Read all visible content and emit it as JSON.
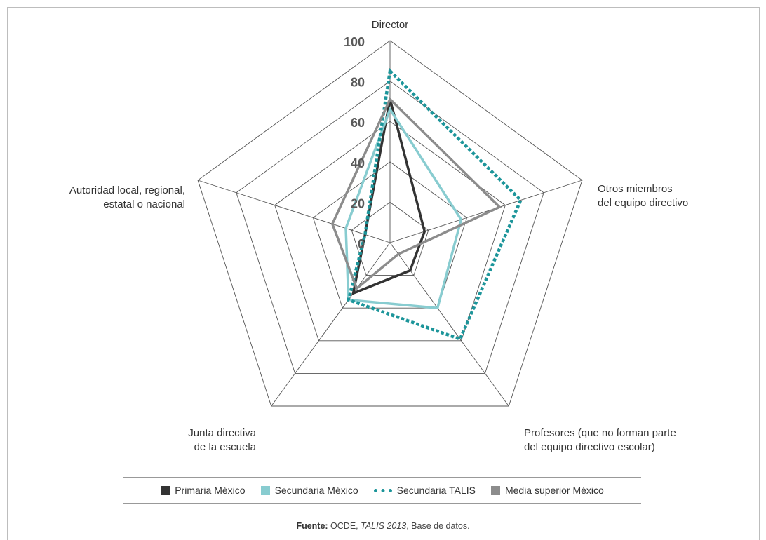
{
  "chart_data": {
    "type": "radar",
    "axes": [
      "Director",
      "Otros miembros del equipo directivo",
      "Profesores (que no forman parte del equipo directivo escolar)",
      "Junta directiva de la escuela",
      "Autoridad local, regional, estatal o nacional"
    ],
    "axis_label_lines": [
      [
        "Director"
      ],
      [
        "Otros miembros",
        "del equipo directivo"
      ],
      [
        "Profesores (que no forman parte",
        "del equipo directivo escolar)"
      ],
      [
        "Junta directiva",
        "de la escuela"
      ],
      [
        "Autoridad local, regional,",
        "estatal o nacional"
      ]
    ],
    "ticks": [
      "0",
      "20",
      "40",
      "60",
      "80",
      "100"
    ],
    "tick_values": [
      0,
      20,
      40,
      60,
      80,
      100
    ],
    "rlim": [
      0,
      100
    ],
    "series": [
      {
        "name": "Primaria México",
        "values": [
          71,
          18,
          17,
          31,
          13
        ],
        "color": "#333333",
        "style": "solid"
      },
      {
        "name": "Secundaria México",
        "values": [
          66,
          37,
          40,
          35,
          23
        ],
        "color": "#88ccd0",
        "style": "solid"
      },
      {
        "name": "Secundaria TALIS",
        "values": [
          85,
          68,
          59,
          35,
          13
        ],
        "color": "#1c959a",
        "style": "dotted"
      },
      {
        "name": "Media superior México",
        "values": [
          71,
          57,
          7,
          28,
          30
        ],
        "color": "#8c8c8c",
        "style": "solid"
      }
    ],
    "legend_position": "bottom"
  },
  "source": {
    "prefix": "Fuente:",
    "org": " OCDE, ",
    "title": "TALIS 2013",
    "suffix": ", Base de datos."
  }
}
